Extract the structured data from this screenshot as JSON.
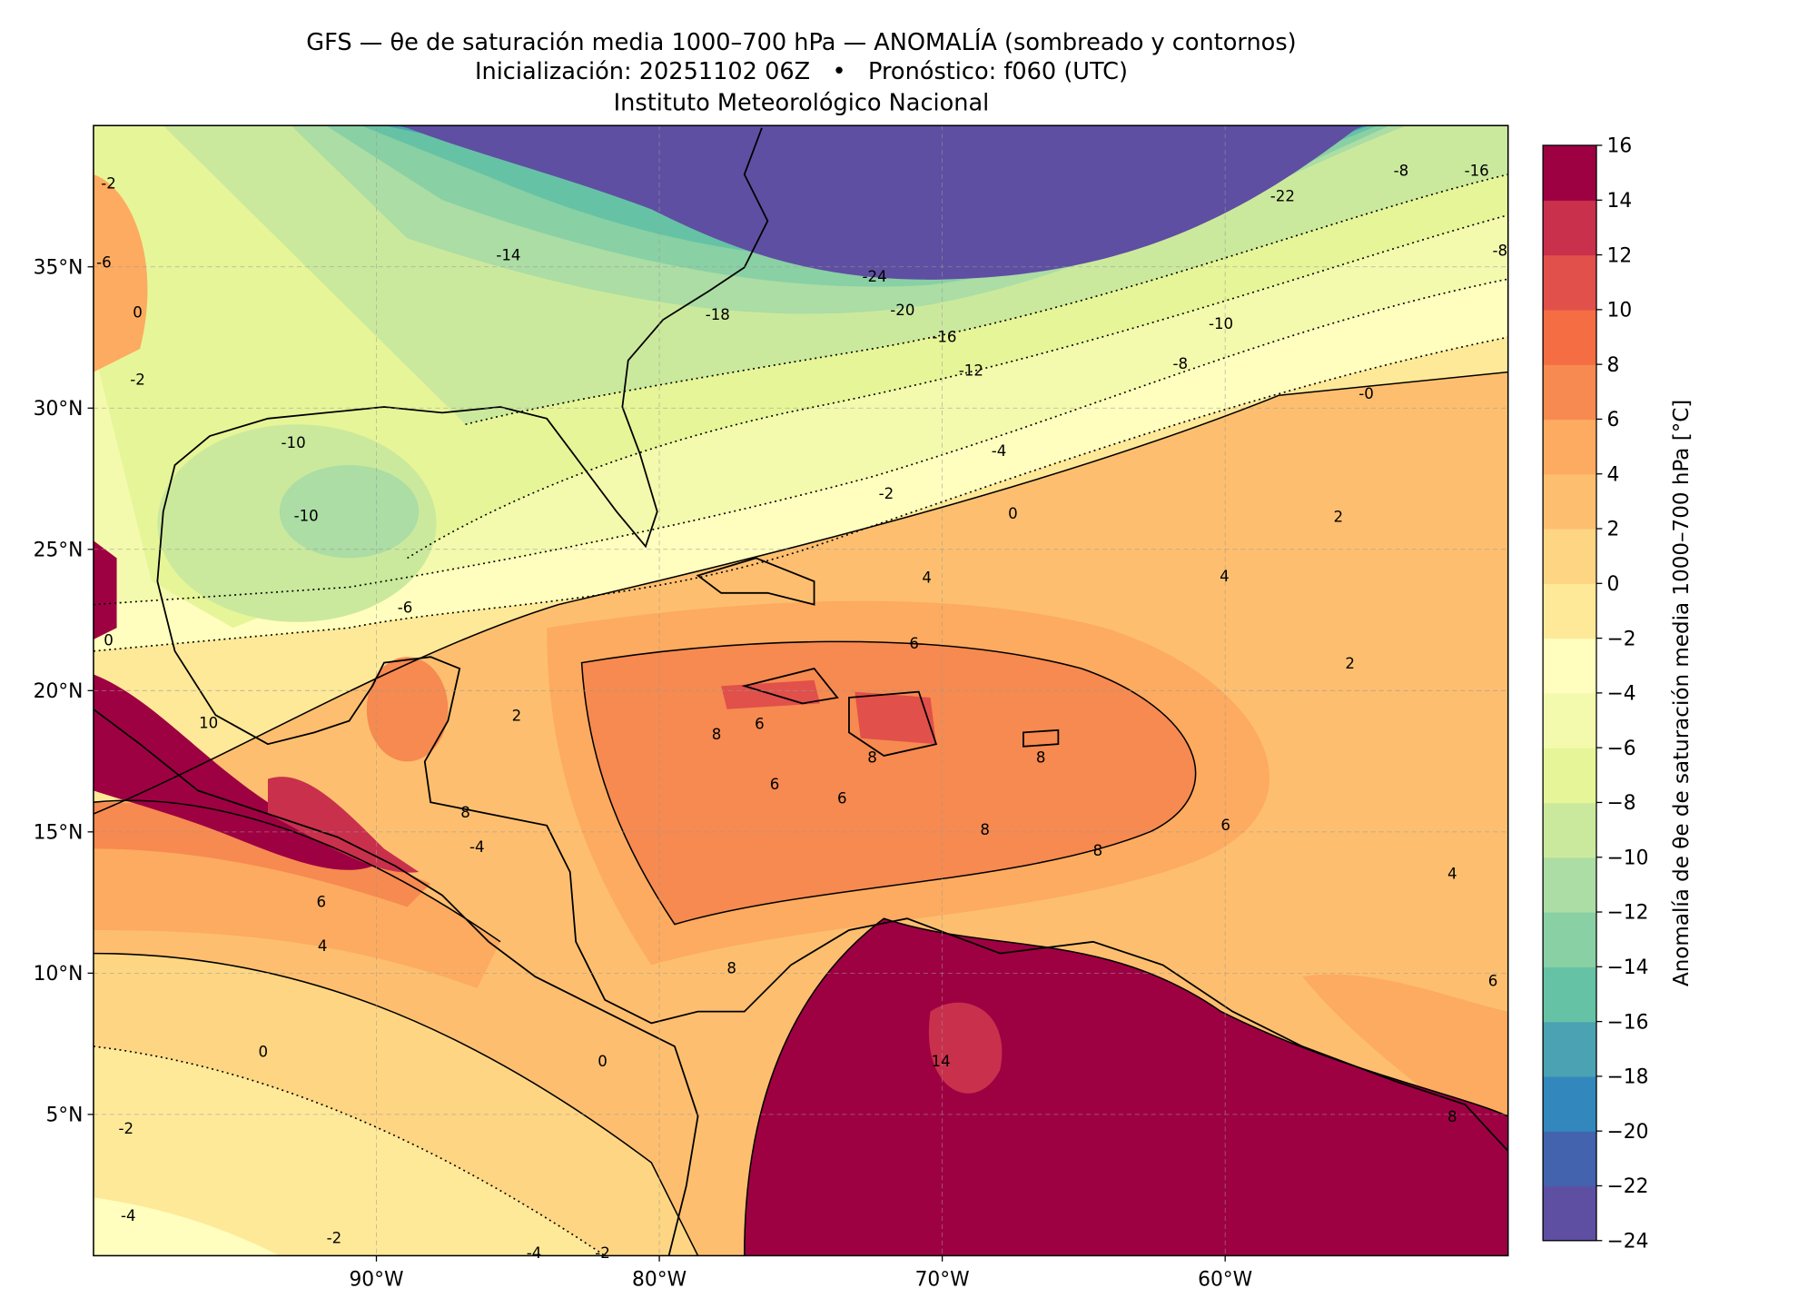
{
  "header": {
    "title": "GFS — θe de saturación media 1000–700 hPa — ANOMALÍA (sombreado y contornos)",
    "subtitle": "Inicialización: 20251102 06Z   •   Pronóstico: f060 (UTC)",
    "credit": "Instituto Meteorológico Nacional"
  },
  "map": {
    "xlim": [
      -100,
      -50
    ],
    "ylim": [
      0,
      40
    ],
    "xticks": [
      {
        "value": -90,
        "label": "90°W"
      },
      {
        "value": -80,
        "label": "80°W"
      },
      {
        "value": -70,
        "label": "70°W"
      },
      {
        "value": -60,
        "label": "60°W"
      }
    ],
    "yticks": [
      {
        "value": 5,
        "label": "5°N"
      },
      {
        "value": 10,
        "label": "10°N"
      },
      {
        "value": 15,
        "label": "15°N"
      },
      {
        "value": 20,
        "label": "20°N"
      },
      {
        "value": 25,
        "label": "25°N"
      },
      {
        "value": 30,
        "label": "30°N"
      },
      {
        "value": 35,
        "label": "35°N"
      }
    ],
    "grid": true,
    "contour_labels": [
      "-24",
      "-22",
      "-20",
      "-18",
      "-16",
      "-16",
      "-14",
      "-12",
      "-10",
      "-10",
      "-10",
      "-8",
      "-8",
      "-8",
      "-6",
      "-4",
      "-2",
      "-0",
      "0",
      "4",
      "2",
      "4",
      "6",
      "8",
      "6",
      "8",
      "8",
      "6",
      "6",
      "8",
      "8",
      "6",
      "6",
      "4",
      "10",
      "8",
      "-4",
      "0",
      "0",
      "-2",
      "-4",
      "-2",
      "-4",
      "-2",
      "14",
      "8",
      "6",
      "4",
      "8",
      "2",
      "-2",
      "-6",
      "0",
      "-2",
      "0",
      "2"
    ]
  },
  "colorbar": {
    "label": "Anomalía de θe de saturación media 1000–700 hPa [°C]",
    "clim": [
      -24,
      16
    ],
    "ticks": [
      {
        "value": -24,
        "label": "−24"
      },
      {
        "value": -22,
        "label": "−22"
      },
      {
        "value": -20,
        "label": "−20"
      },
      {
        "value": -18,
        "label": "−18"
      },
      {
        "value": -16,
        "label": "−16"
      },
      {
        "value": -14,
        "label": "−14"
      },
      {
        "value": -12,
        "label": "−12"
      },
      {
        "value": -10,
        "label": "−10"
      },
      {
        "value": -8,
        "label": "−8"
      },
      {
        "value": -6,
        "label": "−6"
      },
      {
        "value": -4,
        "label": "−4"
      },
      {
        "value": -2,
        "label": "−2"
      },
      0,
      2,
      4,
      6,
      8,
      10,
      12,
      14,
      16
    ],
    "colors": [
      "#5e4fa2",
      "#4363ae",
      "#3288bd",
      "#4aa2b2",
      "#66c2a5",
      "#89d0a4",
      "#abdda4",
      "#cbe99d",
      "#e6f598",
      "#f3faad",
      "#fffebe",
      "#fee999",
      "#fed683",
      "#fdbf6f",
      "#fdab60",
      "#f68a50",
      "#f46d43",
      "#e1504a",
      "#c9304c",
      "#9e0142"
    ]
  }
}
